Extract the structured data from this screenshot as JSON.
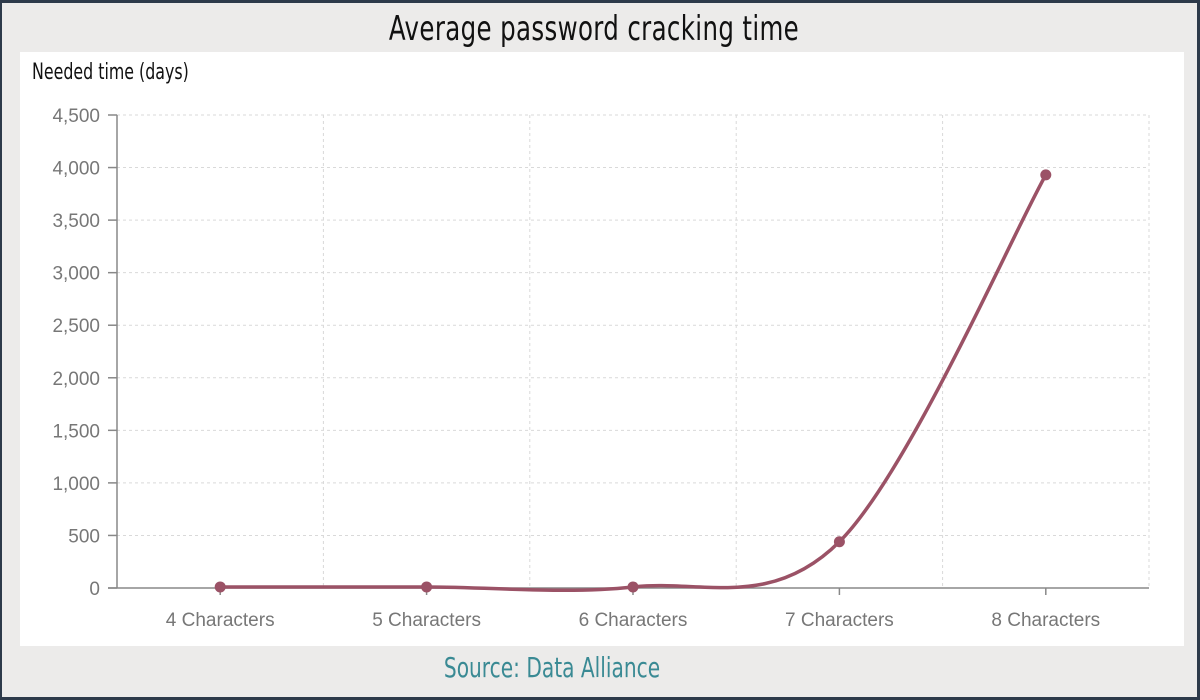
{
  "title": "Average password cracking time",
  "source": "Source: Data Alliance",
  "colors": {
    "line": "#9b5266",
    "background": "#ecebea",
    "border": "#2d3a4a",
    "source_text": "#3a8a94",
    "axis": "#888888",
    "grid": "#d9d9d9"
  },
  "chart_data": {
    "type": "line",
    "title": "Average password cracking time",
    "xlabel": "",
    "ylabel": "Needed time (days)",
    "categories": [
      "4 Characters",
      "5 Characters",
      "6 Characters",
      "7 Characters",
      "8 Characters"
    ],
    "series": [
      {
        "name": "Needed time (days)",
        "values": [
          10,
          10,
          10,
          440,
          3930
        ]
      }
    ],
    "ylim": [
      0,
      4500
    ],
    "yticks": [
      0,
      500,
      1000,
      1500,
      2000,
      2500,
      3000,
      3500,
      4000,
      4500
    ],
    "ytick_labels": [
      "0",
      "500",
      "1,000",
      "1,500",
      "2,000",
      "2,500",
      "3,000",
      "3,500",
      "4,000",
      "4,500"
    ],
    "grid": true,
    "smooth": true,
    "legend": "none",
    "annotation": "Source: Data Alliance"
  }
}
